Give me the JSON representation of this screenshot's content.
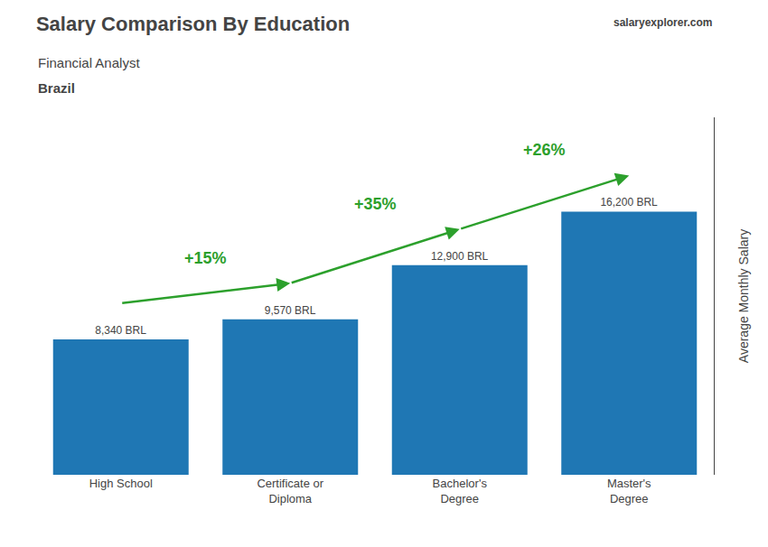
{
  "chart_data": {
    "type": "bar",
    "title": "Salary Comparison By Education",
    "subtitle": "Financial Analyst",
    "country": "Brazil",
    "source": "salaryexplorer.com",
    "ylabel": "Average Monthly Salary",
    "categories": [
      "High School",
      "Certificate or\nDiploma",
      "Bachelor's\nDegree",
      "Master's\nDegree"
    ],
    "values": [
      8340,
      9570,
      12900,
      16200
    ],
    "value_labels": [
      "8,340 BRL",
      "9,570 BRL",
      "12,900 BRL",
      "16,200 BRL"
    ],
    "data_labels": true,
    "annotations": [
      {
        "text": "+15%",
        "from": "High School",
        "to": "Certificate or\nDiploma"
      },
      {
        "text": "+35%",
        "from": "Certificate or\nDiploma",
        "to": "Bachelor's\nDegree"
      },
      {
        "text": "+26%",
        "from": "Bachelor's\nDegree",
        "to": "Master's\nDegree"
      }
    ],
    "ylim": [
      0,
      22000
    ],
    "tick_labels": "x",
    "grid": false
  }
}
